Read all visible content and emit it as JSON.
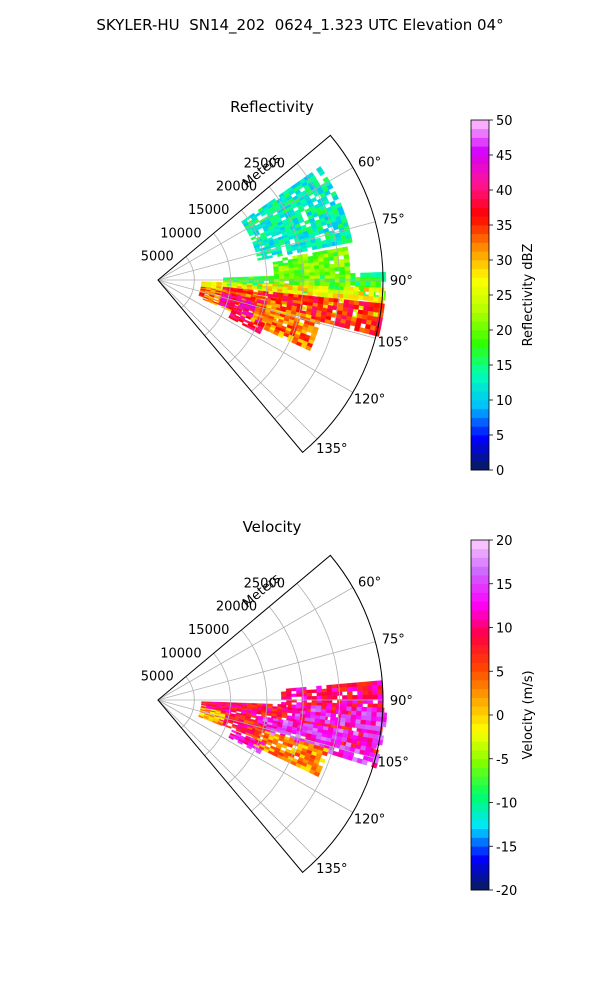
{
  "title": "SKYLER-HU  SN14_202  0624_1.323 UTC Elevation 04°",
  "chart_data": [
    {
      "type": "heatmap",
      "subtype": "polar-sector",
      "title": "Reflectivity",
      "range_axis_label": "Meters",
      "range_ticks": [
        5000,
        10000,
        15000,
        20000,
        25000
      ],
      "azimuth_ticks": [
        "60°",
        "75°",
        "90°",
        "105°",
        "120°",
        "135°"
      ],
      "azimuth_tick_values": [
        60,
        75,
        90,
        105,
        120,
        135
      ],
      "azimuth_range": [
        50,
        140
      ],
      "range_max": 31000,
      "grid": true,
      "colorbar": {
        "label": "Reflectivity dBZ",
        "range": [
          0,
          50
        ],
        "ticks": [
          0,
          5,
          10,
          15,
          20,
          25,
          30,
          35,
          40,
          45,
          50
        ],
        "colormap": [
          "#081d58",
          "#0000ff",
          "#00bfff",
          "#00ffb3",
          "#33ff00",
          "#b3ff00",
          "#ffff00",
          "#ff8c00",
          "#ff0000",
          "#ff1493",
          "#d400ff",
          "#ffc8ff"
        ]
      },
      "regions": [
        {
          "az": [
            88,
            95
          ],
          "r": [
            9000,
            31000
          ],
          "value": 17
        },
        {
          "az": [
            92,
            101
          ],
          "r": [
            6000,
            31000
          ],
          "value": 27
        },
        {
          "az": [
            96,
            104
          ],
          "r": [
            9000,
            31000
          ],
          "value": 36
        },
        {
          "az": [
            99,
            113
          ],
          "r": [
            6000,
            17000
          ],
          "value": 33
        },
        {
          "az": [
            101,
            111
          ],
          "r": [
            9000,
            15000
          ],
          "value": 41
        },
        {
          "az": [
            103,
            115
          ],
          "r": [
            14000,
            23000
          ],
          "value": 32
        },
        {
          "az": [
            112,
            118
          ],
          "r": [
            11000,
            15500
          ],
          "value": 40
        },
        {
          "az": [
            55,
            78
          ],
          "r": [
            14000,
            27000
          ],
          "value": 13
        },
        {
          "az": [
            80,
            92
          ],
          "r": [
            16000,
            26000
          ],
          "value": 20
        }
      ]
    },
    {
      "type": "heatmap",
      "subtype": "polar-sector",
      "title": "Velocity",
      "range_axis_label": "Meters",
      "range_ticks": [
        5000,
        10000,
        15000,
        20000,
        25000
      ],
      "azimuth_ticks": [
        "60°",
        "75°",
        "90°",
        "105°",
        "120°",
        "135°"
      ],
      "azimuth_tick_values": [
        60,
        75,
        90,
        105,
        120,
        135
      ],
      "azimuth_range": [
        50,
        140
      ],
      "range_max": 31000,
      "grid": true,
      "colorbar": {
        "label": "Velocity (m/s)",
        "range": [
          -20,
          20
        ],
        "ticks": [
          -20,
          -15,
          -10,
          -5,
          0,
          5,
          10,
          15,
          20
        ],
        "colormap": [
          "#081d58",
          "#0000ff",
          "#00e5ff",
          "#00ff66",
          "#7fff00",
          "#ffff00",
          "#ffa500",
          "#ff4500",
          "#ff0040",
          "#ff00ff",
          "#cc66ff",
          "#ffd0ff"
        ]
      },
      "regions": [
        {
          "az": [
            92,
            103
          ],
          "r": [
            6000,
            31000
          ],
          "value": 9
        },
        {
          "az": [
            85,
            93
          ],
          "r": [
            17000,
            31000
          ],
          "value": 10
        },
        {
          "az": [
            92,
            98
          ],
          "r": [
            19000,
            31000
          ],
          "value": 14
        },
        {
          "az": [
            99,
            107
          ],
          "r": [
            14000,
            31000
          ],
          "value": 14
        },
        {
          "az": [
            103,
            111
          ],
          "r": [
            8000,
            15000
          ],
          "value": 8
        },
        {
          "az": [
            106,
            115
          ],
          "r": [
            14000,
            24000
          ],
          "value": 3
        },
        {
          "az": [
            112,
            118
          ],
          "r": [
            11000,
            15500
          ],
          "value": 12
        },
        {
          "az": [
            100,
            112
          ],
          "r": [
            6000,
            9000
          ],
          "value": 1
        }
      ]
    }
  ]
}
